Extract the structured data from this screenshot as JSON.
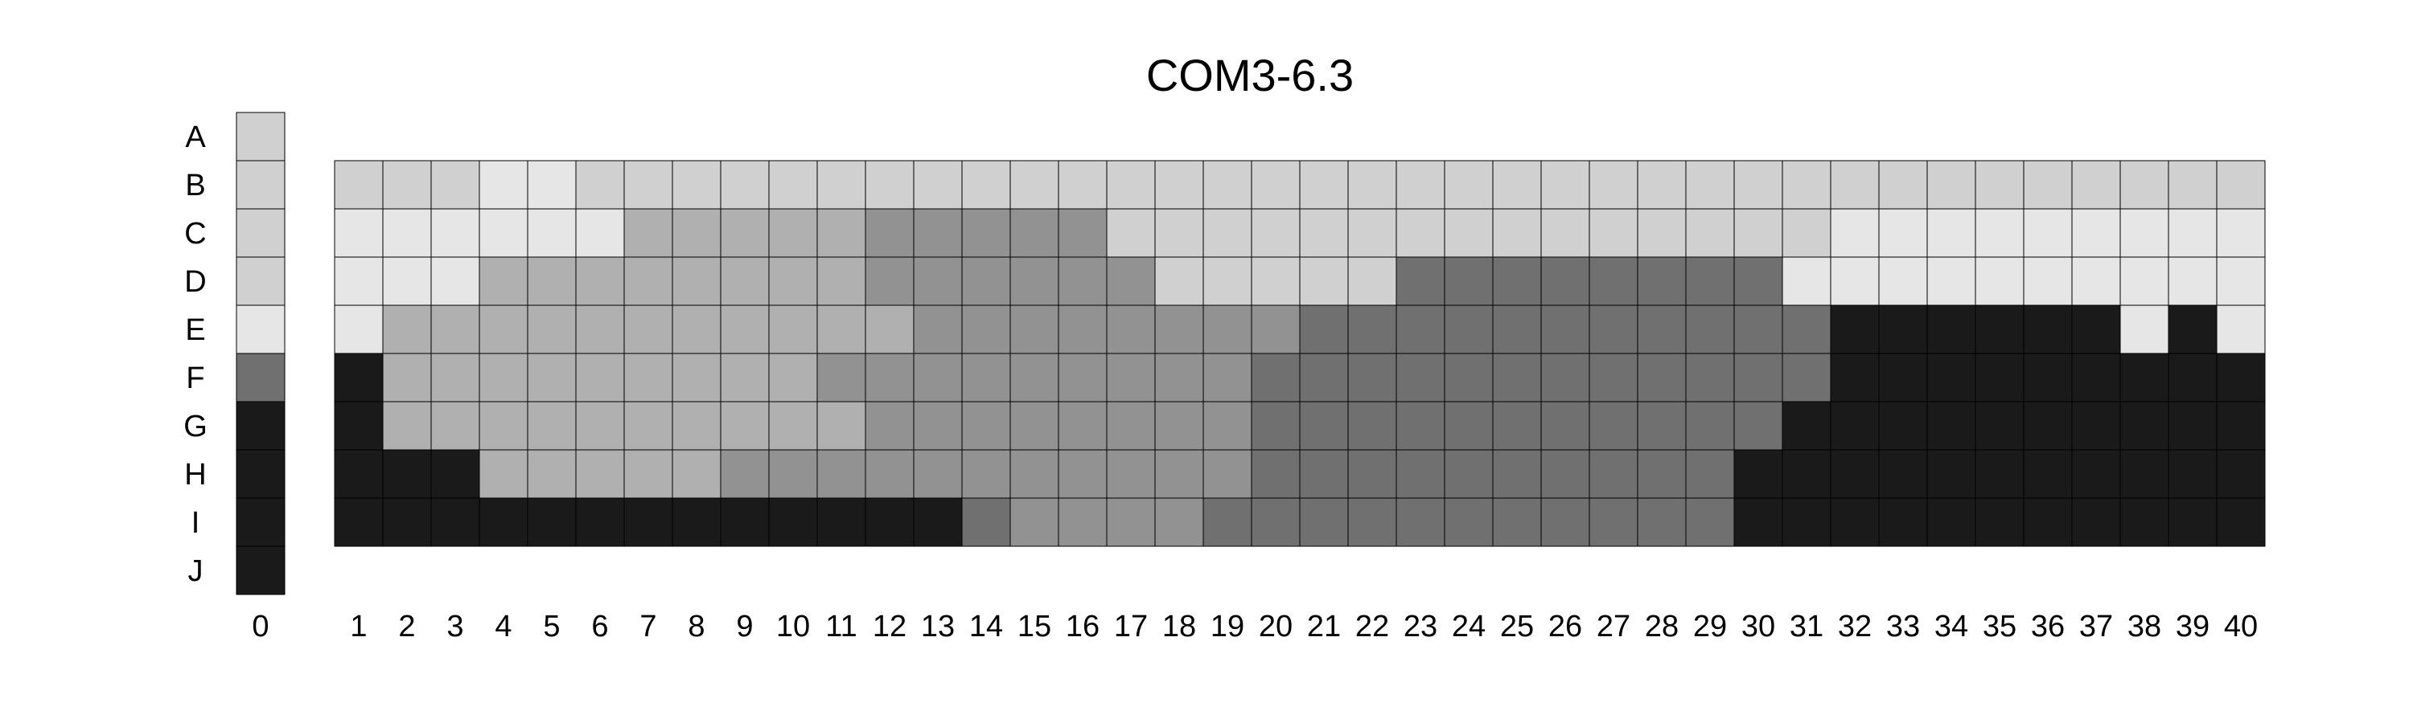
{
  "chart_data": {
    "type": "heatmap",
    "title": "COM3-6.3",
    "row_labels": [
      "A",
      "B",
      "C",
      "D",
      "E",
      "F",
      "G",
      "H",
      "I",
      "J"
    ],
    "reference_column": {
      "label": "0",
      "levels": [
        1,
        1,
        1,
        1,
        0,
        4,
        5,
        5,
        5,
        5
      ]
    },
    "columns": [
      "1",
      "2",
      "3",
      "4",
      "5",
      "6",
      "7",
      "8",
      "9",
      "10",
      "11",
      "12",
      "13",
      "14",
      "15",
      "16",
      "17",
      "18",
      "19",
      "20",
      "21",
      "22",
      "23",
      "24",
      "25",
      "26",
      "27",
      "28",
      "29",
      "30",
      "31",
      "32",
      "33",
      "34",
      "35",
      "36",
      "37",
      "38",
      "39",
      "40"
    ],
    "grid_rows": [
      "B",
      "C",
      "D",
      "E",
      "F",
      "G",
      "H",
      "I"
    ],
    "levels": [
      [
        1,
        1,
        1,
        0,
        0,
        1,
        1,
        1,
        1,
        1,
        1,
        1,
        1,
        1,
        1,
        1,
        1,
        1,
        1,
        1,
        1,
        1,
        1,
        1,
        1,
        1,
        1,
        1,
        1,
        1,
        1,
        1,
        1,
        1,
        1,
        1,
        1,
        1,
        1,
        1
      ],
      [
        0,
        0,
        0,
        0,
        0,
        0,
        2,
        2,
        2,
        2,
        2,
        3,
        3,
        3,
        3,
        3,
        1,
        1,
        1,
        1,
        1,
        1,
        1,
        1,
        1,
        1,
        1,
        1,
        1,
        1,
        1,
        0,
        0,
        0,
        0,
        0,
        0,
        0,
        0,
        0
      ],
      [
        0,
        0,
        0,
        2,
        2,
        2,
        2,
        2,
        2,
        2,
        2,
        3,
        3,
        3,
        3,
        3,
        3,
        1,
        1,
        1,
        1,
        1,
        4,
        4,
        4,
        4,
        4,
        4,
        4,
        4,
        0,
        0,
        0,
        0,
        0,
        0,
        0,
        0,
        0,
        0
      ],
      [
        0,
        2,
        2,
        2,
        2,
        2,
        2,
        2,
        2,
        2,
        2,
        2,
        3,
        3,
        3,
        3,
        3,
        3,
        3,
        3,
        4,
        4,
        4,
        4,
        4,
        4,
        4,
        4,
        4,
        4,
        4,
        5,
        5,
        5,
        5,
        5,
        5,
        0,
        5,
        0
      ],
      [
        5,
        2,
        2,
        2,
        2,
        2,
        2,
        2,
        2,
        2,
        3,
        3,
        3,
        3,
        3,
        3,
        3,
        3,
        3,
        4,
        4,
        4,
        4,
        4,
        4,
        4,
        4,
        4,
        4,
        4,
        4,
        5,
        5,
        5,
        5,
        5,
        5,
        5,
        5,
        5
      ],
      [
        5,
        2,
        2,
        2,
        2,
        2,
        2,
        2,
        2,
        2,
        2,
        3,
        3,
        3,
        3,
        3,
        3,
        3,
        3,
        4,
        4,
        4,
        4,
        4,
        4,
        4,
        4,
        4,
        4,
        4,
        5,
        5,
        5,
        5,
        5,
        5,
        5,
        5,
        5,
        5
      ],
      [
        5,
        5,
        5,
        2,
        2,
        2,
        2,
        2,
        3,
        3,
        3,
        3,
        3,
        3,
        3,
        3,
        3,
        3,
        3,
        4,
        4,
        4,
        4,
        4,
        4,
        4,
        4,
        4,
        4,
        5,
        5,
        5,
        5,
        5,
        5,
        5,
        5,
        5,
        5,
        5
      ],
      [
        5,
        5,
        5,
        5,
        5,
        5,
        5,
        5,
        5,
        5,
        5,
        5,
        5,
        4,
        3,
        3,
        3,
        3,
        4,
        4,
        4,
        4,
        4,
        4,
        4,
        4,
        4,
        4,
        4,
        5,
        5,
        5,
        5,
        5,
        5,
        5,
        5,
        5,
        5,
        5
      ]
    ],
    "level_colors": [
      "#e6e6e6",
      "#d0d0d0",
      "#b0b0b0",
      "#929292",
      "#707070",
      "#1a1a1a"
    ],
    "grid_color": "#000000"
  }
}
